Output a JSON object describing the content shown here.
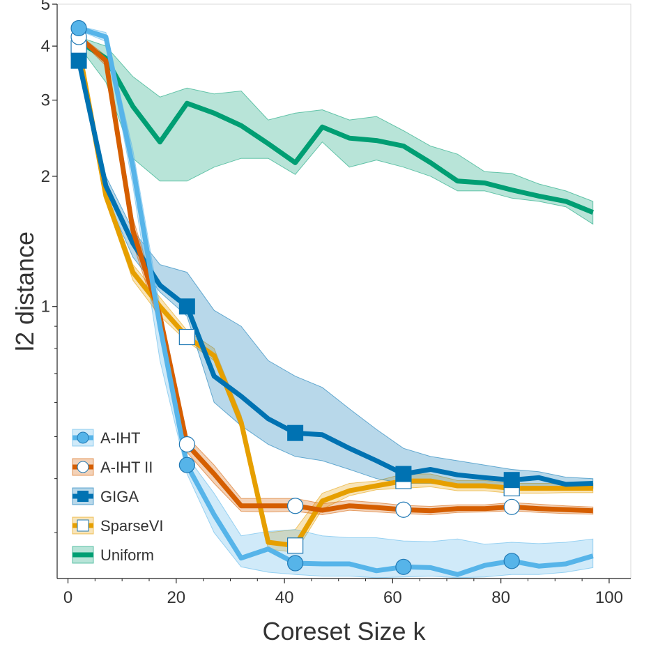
{
  "chart_data": {
    "type": "line",
    "title": "",
    "xlabel": "Coreset Size k",
    "ylabel": "l2 distance",
    "x_scale": "linear",
    "y_scale": "log",
    "xlim": [
      -2,
      104
    ],
    "ylim": [
      0.235,
      5.0
    ],
    "x_ticks": [
      0,
      20,
      40,
      60,
      80,
      100
    ],
    "x_tick_labels": [
      "0",
      "20",
      "40",
      "60",
      "80",
      "100"
    ],
    "y_ticks": [
      1,
      2,
      3,
      4,
      5
    ],
    "y_tick_labels": [
      "1",
      "2",
      "3",
      "4",
      "5"
    ],
    "legend_position": "bottom-left",
    "grid": false,
    "x": [
      2,
      7,
      12,
      17,
      22,
      27,
      32,
      37,
      42,
      47,
      52,
      57,
      62,
      67,
      72,
      77,
      82,
      87,
      92,
      97
    ],
    "series": [
      {
        "name": "A-IHT",
        "color": "#56b4e9",
        "marker": "circle-filled",
        "values": [
          4.4,
          4.2,
          2.1,
          0.9,
          0.43,
          0.33,
          0.262,
          0.275,
          0.255,
          0.254,
          0.254,
          0.245,
          0.25,
          0.249,
          0.24,
          0.252,
          0.258,
          0.251,
          0.254,
          0.265
        ],
        "band_low": [
          4.35,
          4.1,
          1.9,
          0.75,
          0.41,
          0.3,
          0.25,
          0.243,
          0.24,
          0.238,
          0.238,
          0.236,
          0.237,
          0.238,
          0.236,
          0.237,
          0.24,
          0.24,
          0.243,
          0.249
        ],
        "band_high": [
          4.45,
          4.3,
          2.3,
          1.0,
          0.45,
          0.37,
          0.295,
          0.302,
          0.305,
          0.295,
          0.292,
          0.292,
          0.287,
          0.286,
          0.29,
          0.282,
          0.285,
          0.283,
          0.285,
          0.29
        ]
      },
      {
        "name": "A-IHT II",
        "color": "#d55e00",
        "marker": "circle-open",
        "values": [
          4.2,
          3.7,
          1.5,
          0.95,
          0.48,
          0.41,
          0.346,
          0.346,
          0.346,
          0.338,
          0.346,
          0.343,
          0.339,
          0.337,
          0.341,
          0.341,
          0.344,
          0.341,
          0.339,
          0.337
        ],
        "band_low": [
          4.15,
          3.6,
          1.4,
          0.9,
          0.46,
          0.39,
          0.336,
          0.335,
          0.336,
          0.33,
          0.338,
          0.335,
          0.332,
          0.33,
          0.334,
          0.335,
          0.337,
          0.334,
          0.332,
          0.331
        ],
        "band_high": [
          4.25,
          3.8,
          1.6,
          1.0,
          0.5,
          0.43,
          0.36,
          0.36,
          0.36,
          0.35,
          0.356,
          0.352,
          0.347,
          0.345,
          0.348,
          0.348,
          0.352,
          0.349,
          0.346,
          0.344
        ]
      },
      {
        "name": "GIGA",
        "color": "#0072b2",
        "marker": "square-filled",
        "values": [
          3.7,
          1.9,
          1.4,
          1.12,
          1.0,
          0.69,
          0.62,
          0.55,
          0.51,
          0.505,
          0.47,
          0.44,
          0.41,
          0.42,
          0.408,
          0.402,
          0.397,
          0.402,
          0.388,
          0.39
        ],
        "band_low": [
          3.65,
          1.8,
          1.3,
          1.08,
          0.95,
          0.6,
          0.53,
          0.48,
          0.45,
          0.44,
          0.42,
          0.4,
          0.39,
          0.39,
          0.385,
          0.383,
          0.38,
          0.38,
          0.378,
          0.38
        ],
        "band_high": [
          3.75,
          2.0,
          1.5,
          1.25,
          1.2,
          0.98,
          0.9,
          0.75,
          0.69,
          0.65,
          0.58,
          0.52,
          0.47,
          0.45,
          0.44,
          0.43,
          0.42,
          0.415,
          0.403,
          0.4
        ]
      },
      {
        "name": "SparseVI",
        "color": "#e69f00",
        "marker": "square-open",
        "values": [
          3.95,
          1.8,
          1.2,
          1.0,
          0.85,
          0.77,
          0.54,
          0.285,
          0.28,
          0.355,
          0.375,
          0.385,
          0.395,
          0.395,
          0.385,
          0.385,
          0.38,
          0.38,
          0.38,
          0.38
        ],
        "band_low": [
          3.9,
          1.75,
          1.15,
          0.95,
          0.83,
          0.75,
          0.52,
          0.275,
          0.27,
          0.34,
          0.365,
          0.377,
          0.38,
          0.383,
          0.375,
          0.375,
          0.37,
          0.37,
          0.371,
          0.371
        ],
        "band_high": [
          4.0,
          1.85,
          1.25,
          1.05,
          0.88,
          0.8,
          0.56,
          0.3,
          0.305,
          0.37,
          0.39,
          0.395,
          0.41,
          0.41,
          0.396,
          0.396,
          0.39,
          0.39,
          0.39,
          0.39
        ]
      },
      {
        "name": "Uniform",
        "color": "#009e73",
        "marker": "none",
        "values": [
          4.1,
          3.75,
          2.9,
          2.4,
          2.95,
          2.8,
          2.62,
          2.38,
          2.15,
          2.6,
          2.45,
          2.42,
          2.35,
          2.15,
          1.95,
          1.93,
          1.86,
          1.8,
          1.75,
          1.65
        ],
        "band_low": [
          4.0,
          3.3,
          2.2,
          1.95,
          1.95,
          2.1,
          2.2,
          2.2,
          2.02,
          2.4,
          2.1,
          2.18,
          2.1,
          2.0,
          1.85,
          1.85,
          1.78,
          1.75,
          1.7,
          1.55
        ],
        "band_high": [
          4.2,
          4.0,
          3.4,
          3.05,
          3.2,
          3.1,
          3.15,
          2.7,
          2.8,
          2.85,
          2.7,
          2.75,
          2.55,
          2.35,
          2.25,
          2.05,
          2.03,
          1.92,
          1.85,
          1.75
        ]
      }
    ],
    "markers_at_x": [
      2,
      22,
      42,
      62,
      82
    ]
  }
}
